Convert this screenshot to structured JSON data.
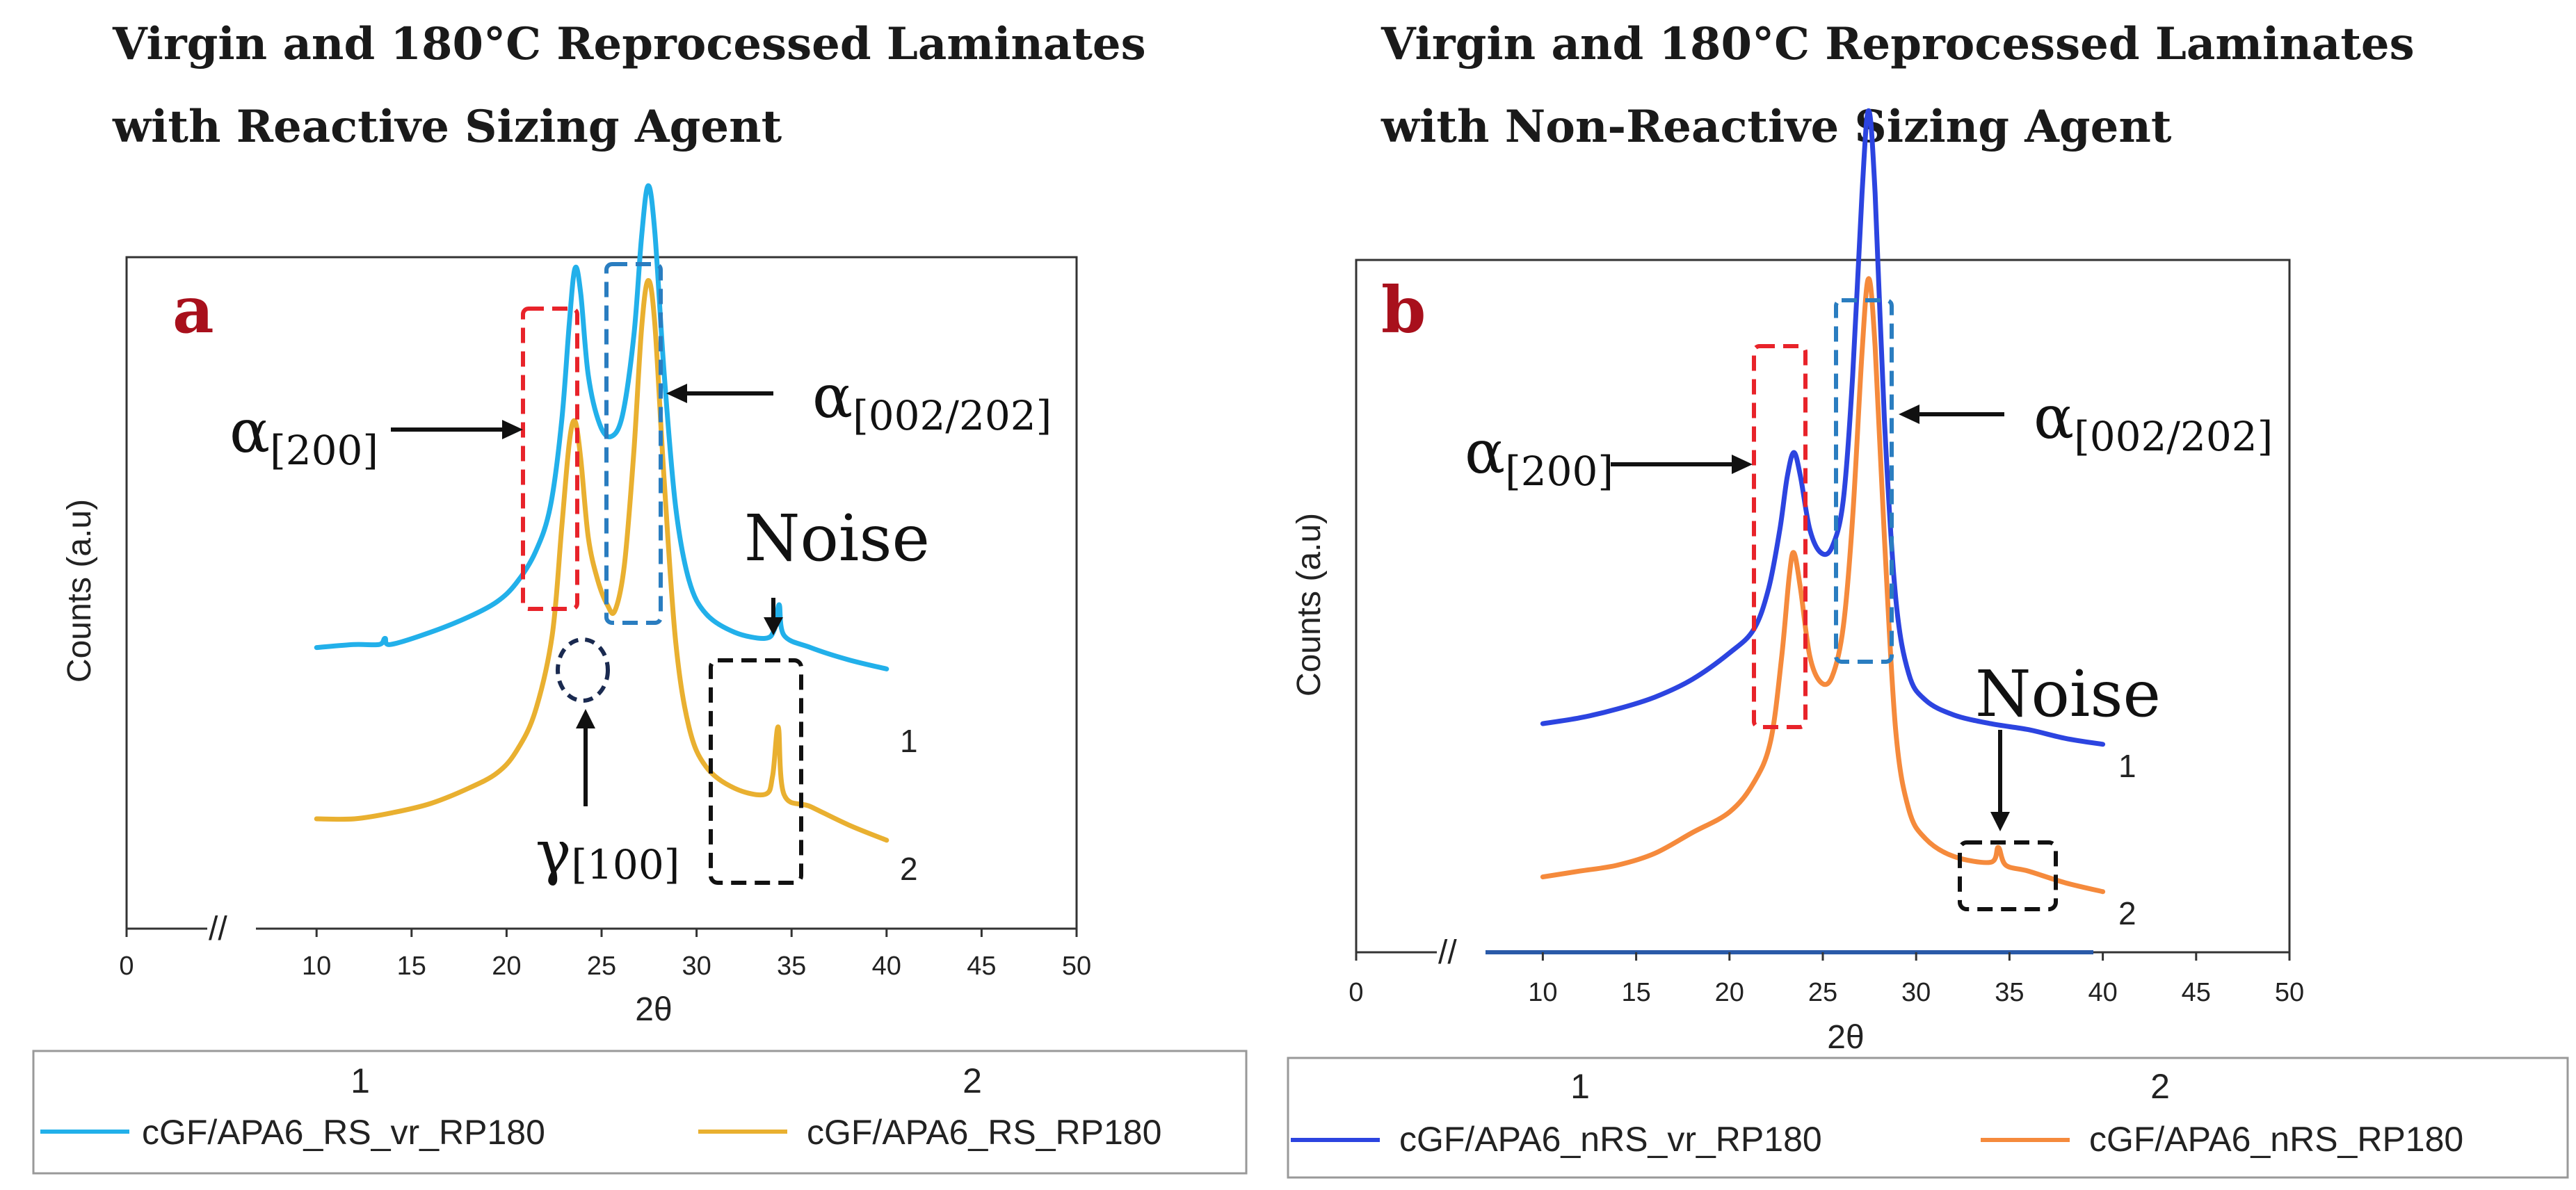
{
  "chart_data": [
    {
      "type": "line",
      "panel_label": "a",
      "panel_color": "#a8101c",
      "title_line1": "Virgin and 180°C Reprocessed Laminates",
      "title_line2": "with Reactive Sizing Agent",
      "xlabel": "2θ",
      "ylabel": "Counts (a.u)",
      "xlim": [
        0,
        50
      ],
      "xticks": [
        "0",
        "10",
        "15",
        "20",
        "25",
        "30",
        "35",
        "40",
        "45",
        "50"
      ],
      "axis_break": "//",
      "series": [
        {
          "name": "cGF/APA6_RS_vr_RP180",
          "legend_number": "1",
          "curve_label": "1",
          "color": "#22b0ea",
          "points": [
            [
              10,
              0.66
            ],
            [
              12,
              0.67
            ],
            [
              13.3,
              0.67
            ],
            [
              13.6,
              0.69
            ],
            [
              13.9,
              0.67
            ],
            [
              16,
              0.71
            ],
            [
              18,
              0.76
            ],
            [
              19.5,
              0.81
            ],
            [
              20.5,
              0.87
            ],
            [
              21.5,
              0.97
            ],
            [
              22.3,
              1.12
            ],
            [
              22.9,
              1.4
            ],
            [
              23.3,
              1.72
            ],
            [
              23.6,
              1.9
            ],
            [
              23.9,
              1.82
            ],
            [
              24.3,
              1.55
            ],
            [
              24.9,
              1.39
            ],
            [
              25.5,
              1.35
            ],
            [
              26.1,
              1.42
            ],
            [
              26.7,
              1.68
            ],
            [
              27.1,
              2.0
            ],
            [
              27.45,
              2.17
            ],
            [
              27.8,
              2.02
            ],
            [
              28.3,
              1.55
            ],
            [
              28.9,
              1.12
            ],
            [
              29.6,
              0.88
            ],
            [
              30.5,
              0.77
            ],
            [
              32,
              0.71
            ],
            [
              33.6,
              0.69
            ],
            [
              34.1,
              0.72
            ],
            [
              34.35,
              0.8
            ],
            [
              34.6,
              0.7
            ],
            [
              36,
              0.66
            ],
            [
              38,
              0.62
            ],
            [
              40,
              0.59
            ]
          ]
        },
        {
          "name": "cGF/APA6_RS_RP180",
          "legend_number": "2",
          "curve_label": "2",
          "color": "#e9b030",
          "points": [
            [
              10,
              0.1
            ],
            [
              12,
              0.1
            ],
            [
              14,
              0.12
            ],
            [
              16,
              0.15
            ],
            [
              18,
              0.2
            ],
            [
              19.5,
              0.25
            ],
            [
              20.5,
              0.32
            ],
            [
              21.5,
              0.45
            ],
            [
              22.4,
              0.7
            ],
            [
              22.9,
              1.05
            ],
            [
              23.3,
              1.33
            ],
            [
              23.6,
              1.4
            ],
            [
              23.9,
              1.28
            ],
            [
              24.3,
              1.02
            ],
            [
              24.8,
              0.88
            ],
            [
              25.3,
              0.8
            ],
            [
              25.7,
              0.78
            ],
            [
              26.2,
              0.93
            ],
            [
              26.7,
              1.3
            ],
            [
              27.1,
              1.7
            ],
            [
              27.45,
              1.86
            ],
            [
              27.8,
              1.72
            ],
            [
              28.3,
              1.2
            ],
            [
              28.9,
              0.68
            ],
            [
              29.6,
              0.4
            ],
            [
              30.5,
              0.27
            ],
            [
              32,
              0.2
            ],
            [
              33.6,
              0.18
            ],
            [
              34.0,
              0.24
            ],
            [
              34.3,
              0.4
            ],
            [
              34.6,
              0.18
            ],
            [
              36,
              0.14
            ],
            [
              38,
              0.08
            ],
            [
              40,
              0.03
            ]
          ]
        }
      ],
      "annotations": {
        "alpha_200_symbol": "α",
        "alpha_200_sub": "[200]",
        "alpha_002_symbol": "α",
        "alpha_002_sub": "[002/202]",
        "gamma_symbol": "γ",
        "gamma_sub": "[100]",
        "noise": "Noise"
      }
    },
    {
      "type": "line",
      "panel_label": "b",
      "panel_color": "#a8101c",
      "title_line1": "Virgin and 180°C Reprocessed Laminates",
      "title_line2": "with Non-Reactive Sizing Agent",
      "xlabel": "2θ",
      "ylabel": "Counts (a.u)",
      "xlim": [
        0,
        50
      ],
      "xticks": [
        "0",
        "10",
        "15",
        "20",
        "25",
        "30",
        "35",
        "40",
        "45",
        "50"
      ],
      "axis_break": "//",
      "series": [
        {
          "name": "cGF/APA6_nRS_vr_RP180",
          "legend_number": "1",
          "curve_label": "1",
          "color": "#2c44e0",
          "points": [
            [
              10,
              0.62
            ],
            [
              12,
              0.64
            ],
            [
              14,
              0.67
            ],
            [
              16,
              0.71
            ],
            [
              18,
              0.77
            ],
            [
              20,
              0.86
            ],
            [
              21.3,
              0.94
            ],
            [
              22.1,
              1.08
            ],
            [
              22.7,
              1.28
            ],
            [
              23.1,
              1.46
            ],
            [
              23.45,
              1.54
            ],
            [
              23.8,
              1.46
            ],
            [
              24.3,
              1.28
            ],
            [
              24.9,
              1.2
            ],
            [
              25.5,
              1.22
            ],
            [
              26.1,
              1.38
            ],
            [
              26.6,
              1.8
            ],
            [
              27.1,
              2.42
            ],
            [
              27.45,
              2.7
            ],
            [
              27.8,
              2.42
            ],
            [
              28.3,
              1.65
            ],
            [
              28.9,
              1.05
            ],
            [
              29.6,
              0.79
            ],
            [
              30.5,
              0.7
            ],
            [
              32,
              0.65
            ],
            [
              34,
              0.62
            ],
            [
              36,
              0.6
            ],
            [
              38,
              0.57
            ],
            [
              40,
              0.55
            ]
          ]
        },
        {
          "name": "cGF/APA6_nRS_RP180",
          "legend_number": "2",
          "curve_label": "2",
          "color": "#f58a3c",
          "points": [
            [
              10,
              0.1
            ],
            [
              12,
              0.12
            ],
            [
              14,
              0.14
            ],
            [
              16,
              0.18
            ],
            [
              18,
              0.25
            ],
            [
              20,
              0.32
            ],
            [
              21.3,
              0.42
            ],
            [
              22.2,
              0.56
            ],
            [
              22.8,
              0.85
            ],
            [
              23.2,
              1.12
            ],
            [
              23.45,
              1.2
            ],
            [
              23.8,
              1.08
            ],
            [
              24.3,
              0.85
            ],
            [
              24.9,
              0.76
            ],
            [
              25.5,
              0.78
            ],
            [
              26.1,
              0.95
            ],
            [
              26.6,
              1.32
            ],
            [
              27.1,
              1.88
            ],
            [
              27.45,
              2.13
            ],
            [
              27.8,
              1.9
            ],
            [
              28.3,
              1.25
            ],
            [
              28.9,
              0.6
            ],
            [
              29.6,
              0.33
            ],
            [
              30.5,
              0.23
            ],
            [
              32,
              0.17
            ],
            [
              34.0,
              0.15
            ],
            [
              34.4,
              0.2
            ],
            [
              34.8,
              0.14
            ],
            [
              36,
              0.12
            ],
            [
              38,
              0.08
            ],
            [
              40,
              0.05
            ]
          ]
        }
      ],
      "annotations": {
        "alpha_200_symbol": "α",
        "alpha_200_sub": "[200]",
        "alpha_002_symbol": "α",
        "alpha_002_sub": "[002/202]",
        "noise": "Noise"
      }
    }
  ]
}
